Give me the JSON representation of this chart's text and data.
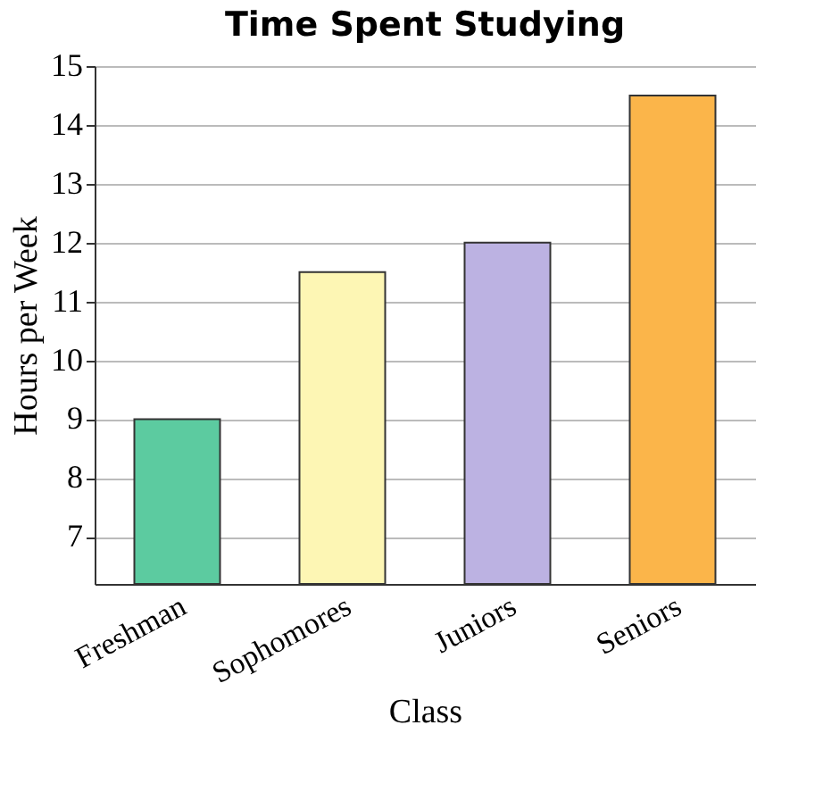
{
  "chart_data": {
    "type": "bar",
    "title": "Time Spent Studying",
    "xlabel": "Class",
    "ylabel": "Hours per Week",
    "categories": [
      "Freshman",
      "Sophomores",
      "Juniors",
      "Seniors"
    ],
    "values": [
      9,
      11.5,
      12,
      14.5
    ],
    "colors": [
      "#5ccba0",
      "#fdf6b4",
      "#bcb2e2",
      "#fbb54a"
    ],
    "ylim": [
      6.2,
      15
    ],
    "yticks": [
      7,
      8,
      9,
      10,
      11,
      12,
      13,
      14,
      15
    ],
    "grid": "y"
  }
}
